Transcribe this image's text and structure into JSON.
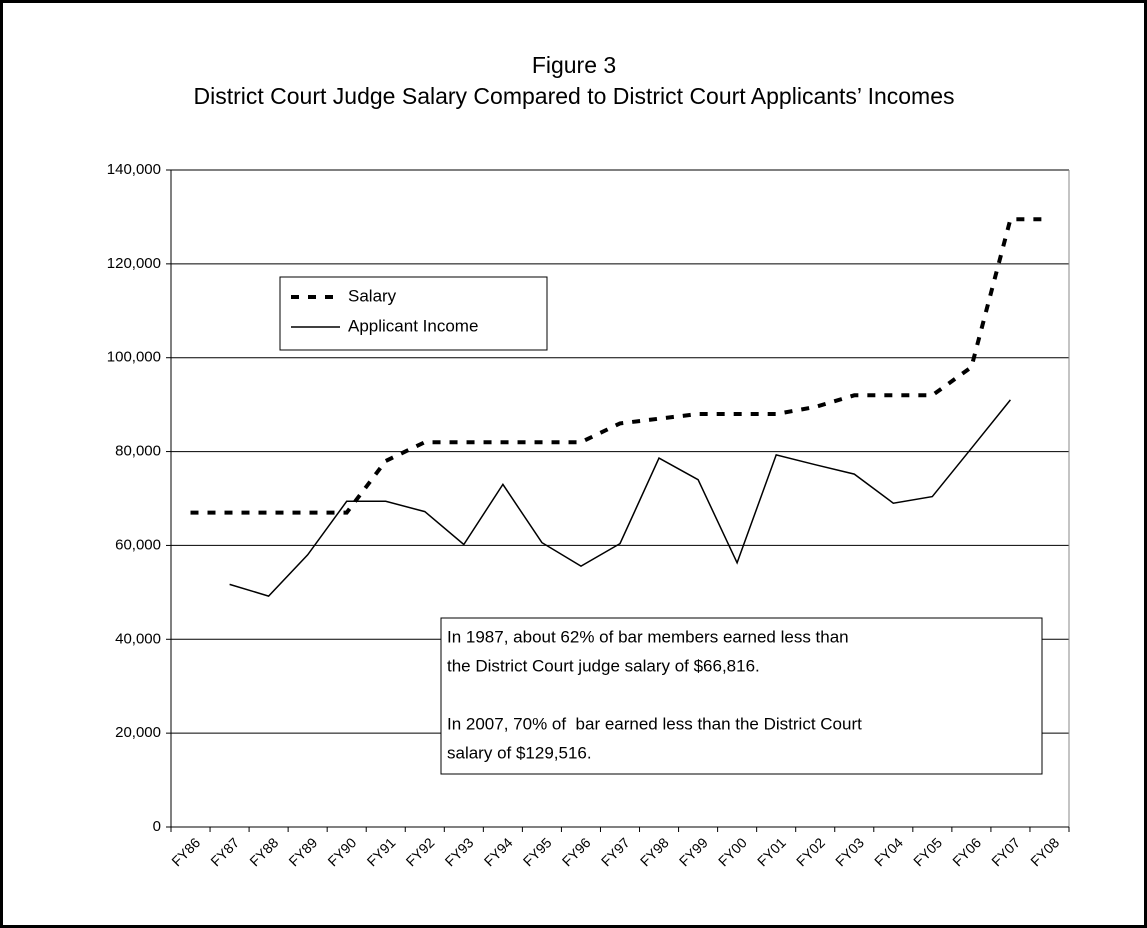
{
  "chart_data": {
    "type": "line",
    "title": "Figure 3",
    "subtitle": "District Court Judge Salary Compared to District Court Applicants’ Incomes",
    "categories": [
      "FY86",
      "FY87",
      "FY88",
      "FY89",
      "FY90",
      "FY91",
      "FY92",
      "FY93",
      "FY94",
      "FY95",
      "FY96",
      "FY97",
      "FY98",
      "FY99",
      "FY00",
      "FY01",
      "FY02",
      "FY03",
      "FY04",
      "FY05",
      "FY06",
      "FY07",
      "FY08"
    ],
    "series": [
      {
        "name": "Salary",
        "color": "#000000",
        "dashed": true,
        "values": [
          67000,
          67000,
          67000,
          67000,
          67000,
          78000,
          82000,
          82000,
          82000,
          82000,
          82000,
          86000,
          87000,
          88000,
          88000,
          88000,
          89500,
          92000,
          92000,
          92000,
          98000,
          129500,
          129500
        ]
      },
      {
        "name": "Applicant Income",
        "color": "#000000",
        "dashed": false,
        "values": [
          null,
          51700,
          49200,
          58000,
          69400,
          69400,
          67200,
          60200,
          73000,
          60600,
          55600,
          60400,
          78600,
          74000,
          56300,
          79300,
          77200,
          75200,
          69000,
          70400,
          80700,
          91000,
          null
        ]
      }
    ],
    "ylim": [
      0,
      140000
    ],
    "yticks": [
      0,
      {
        "value": 20000,
        "label": "20,000"
      },
      {
        "value": 40000,
        "label": "40,000"
      },
      {
        "value": 60000,
        "label": "60,000"
      },
      {
        "value": 80000,
        "label": "80,000"
      },
      {
        "value": 100000,
        "label": "100,000"
      },
      {
        "value": 120000,
        "label": "120,000"
      },
      {
        "value": 140000,
        "label": "140,000"
      }
    ],
    "grid": true,
    "legend": "upper left",
    "annotation": [
      [
        "In 1987, about 62% of bar members earned less than",
        "the District Court judge salary of $66,816."
      ],
      [
        "In 2007, 70% of  bar earned less than the District Court",
        "salary of $129,516."
      ]
    ]
  }
}
